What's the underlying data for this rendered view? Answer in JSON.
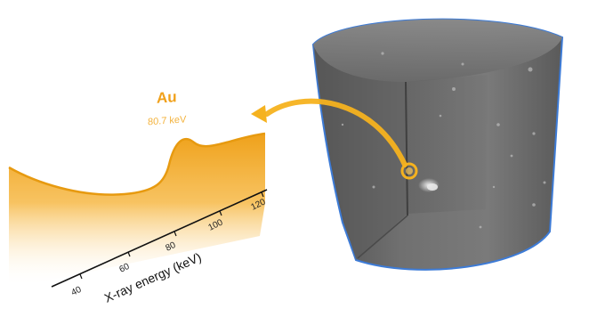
{
  "spectrum": {
    "element": "Au",
    "edge_energy": "80.7 keV",
    "axis_title": "X-ray energy (keV)",
    "ticks": [
      "40",
      "60",
      "80",
      "100",
      "120"
    ]
  },
  "colors": {
    "spectrum_fill": "#f2a71b",
    "spectrum_line": "#e59400",
    "label": "#f0a01a",
    "axis": "#111111",
    "sample_body": "#6e6e6e",
    "sample_outline": "#3d7bd6",
    "highlight": "#f5b21f"
  }
}
